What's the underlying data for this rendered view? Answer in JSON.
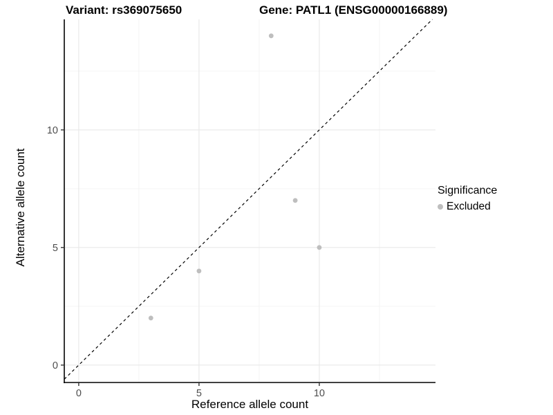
{
  "titles": {
    "variant": "Variant: rs369075650",
    "gene": "Gene: PATL1 (ENSG00000166889)"
  },
  "chart_data": {
    "type": "scatter",
    "points": [
      {
        "x": 3,
        "y": 2
      },
      {
        "x": 5,
        "y": 4
      },
      {
        "x": 8,
        "y": 14
      },
      {
        "x": 9,
        "y": 7
      },
      {
        "x": 10,
        "y": 5
      }
    ],
    "series_name": "Excluded",
    "xlabel": "Reference allele count",
    "ylabel": "Alternative allele count",
    "xlim": [
      -0.6,
      14.83
    ],
    "ylim": [
      -0.74,
      14.7
    ],
    "x_major_ticks": [
      0,
      5,
      10
    ],
    "y_major_ticks": [
      0,
      5,
      10
    ],
    "x_minor_gridlines": [
      2.5,
      7.5,
      12.5
    ],
    "y_minor_gridlines": [
      2.5,
      7.5,
      12.5
    ],
    "identity_line": {
      "equation": "y = x",
      "style": "dashed"
    },
    "grid": "major and minor, light gray on white",
    "legend_position": "right",
    "legend": {
      "title": "Significance",
      "items": [
        {
          "label": "Excluded",
          "color": "#bebebe"
        }
      ]
    },
    "point_color": "#bebebe"
  },
  "colors": {
    "background": "#ffffff",
    "point": "#bebebe",
    "grid_major": "#e8e8e8",
    "grid_minor": "#f3f3f3",
    "axis_line": "#000000",
    "tick_mark": "#333333",
    "tick_label": "#4d4d4d",
    "identity_line": "#000000",
    "text": "#000000"
  }
}
